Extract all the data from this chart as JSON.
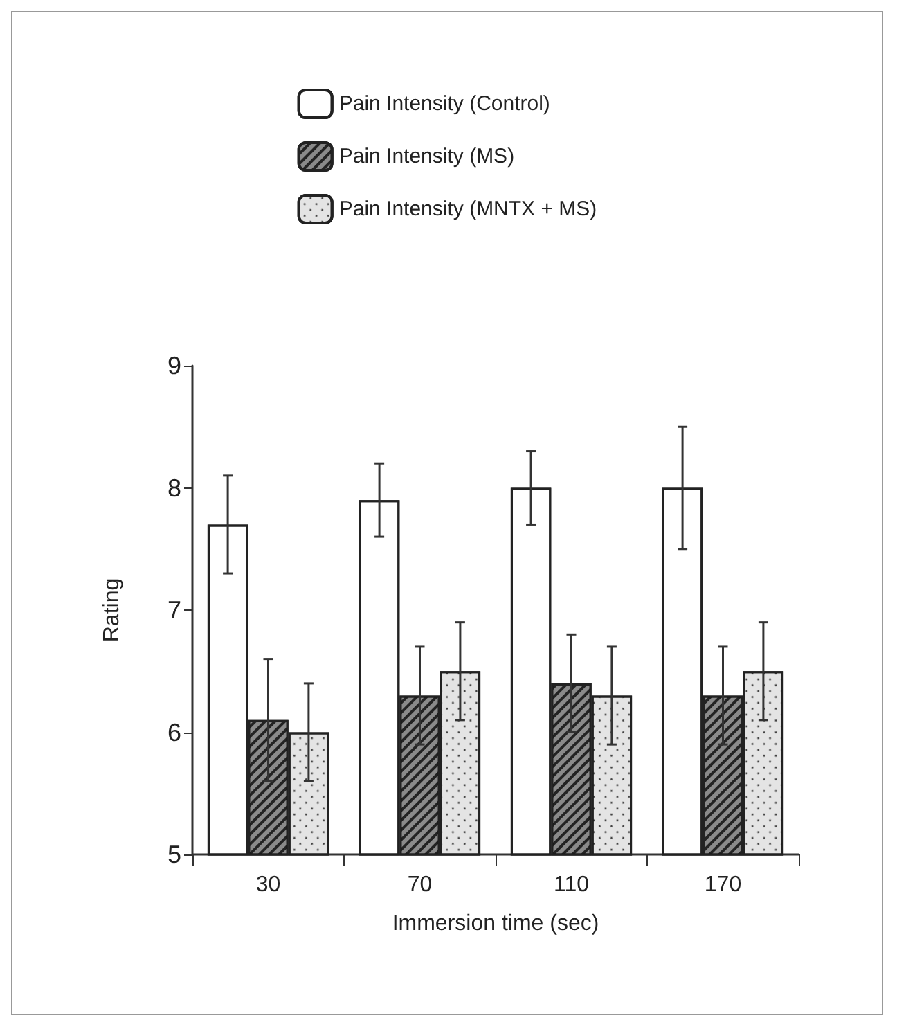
{
  "chart_data": {
    "type": "bar",
    "xlabel": "Immersion time (sec)",
    "ylabel": "Rating",
    "categories": [
      "30",
      "70",
      "110",
      "170"
    ],
    "series": [
      {
        "name": "Pain Intensity (Control)",
        "color": "#ffffff",
        "values": [
          7.7,
          7.9,
          8.0,
          8.0
        ],
        "errors": [
          0.4,
          0.3,
          0.3,
          0.5
        ]
      },
      {
        "name": "Pain Intensity (MS)",
        "color": "#8a8a8a",
        "values": [
          6.1,
          6.3,
          6.4,
          6.3
        ],
        "errors": [
          0.5,
          0.4,
          0.4,
          0.4
        ]
      },
      {
        "name": "Pain Intensity (MNTX + MS)",
        "color": "#e4e4e4",
        "values": [
          6.0,
          6.5,
          6.3,
          6.5
        ],
        "errors": [
          0.4,
          0.4,
          0.4,
          0.4
        ]
      }
    ],
    "ylim": [
      5,
      9
    ],
    "yticks": [
      5,
      6,
      7,
      8,
      9
    ],
    "legend": "top",
    "grid": false
  }
}
